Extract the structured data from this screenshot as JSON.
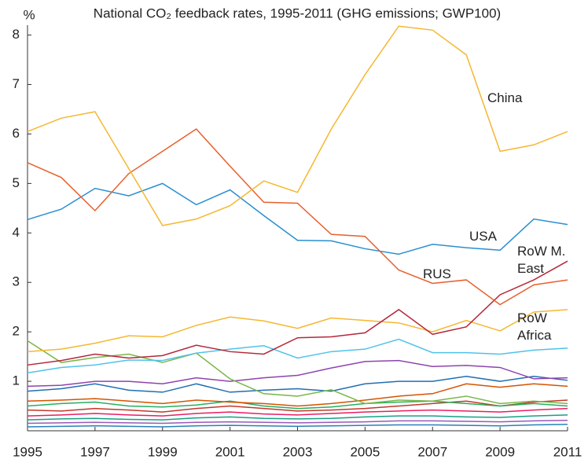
{
  "chart_data": {
    "type": "line",
    "title": "National CO₂ feedback rates, 1995-2011 (GHG emissions; GWP100)",
    "y_label": "%",
    "x": [
      1995,
      1996,
      1997,
      1998,
      1999,
      2000,
      2001,
      2002,
      2003,
      2004,
      2005,
      2006,
      2007,
      2008,
      2009,
      2010,
      2011
    ],
    "xlim": [
      1995,
      2011
    ],
    "xticks": [
      1995,
      1997,
      1999,
      2001,
      2003,
      2005,
      2007,
      2009,
      2011
    ],
    "ylim": [
      0,
      8.2
    ],
    "yticks": [
      1,
      2,
      3,
      4,
      5,
      6,
      7,
      8
    ],
    "series": [
      {
        "name": "China",
        "color": "#f5b731",
        "values": [
          6.05,
          6.32,
          6.45,
          5.3,
          4.15,
          4.28,
          4.55,
          5.05,
          4.82,
          6.1,
          7.2,
          8.18,
          8.1,
          7.6,
          5.65,
          5.78,
          6.05
        ]
      },
      {
        "name": "RUS",
        "color": "#e8602c",
        "values": [
          5.42,
          5.12,
          4.45,
          5.2,
          5.65,
          6.1,
          5.35,
          4.62,
          4.6,
          3.97,
          3.93,
          3.25,
          2.98,
          3.05,
          2.55,
          2.95,
          3.05
        ]
      },
      {
        "name": "USA",
        "color": "#2a8fd0",
        "values": [
          4.27,
          4.48,
          4.9,
          4.75,
          5.0,
          4.57,
          4.87,
          4.35,
          3.85,
          3.84,
          3.68,
          3.57,
          3.77,
          3.7,
          3.65,
          4.28,
          4.17
        ]
      },
      {
        "name": "RoW M. East",
        "color": "#b5273a",
        "values": [
          1.33,
          1.42,
          1.55,
          1.47,
          1.52,
          1.73,
          1.6,
          1.55,
          1.88,
          1.9,
          1.98,
          2.45,
          1.95,
          2.1,
          2.75,
          3.05,
          3.43
        ]
      },
      {
        "name": "RoW Africa",
        "color": "#f5b731",
        "values": [
          1.6,
          1.65,
          1.77,
          1.92,
          1.9,
          2.13,
          2.3,
          2.22,
          2.07,
          2.28,
          2.23,
          2.18,
          2.0,
          2.23,
          2.02,
          2.4,
          2.45
        ]
      },
      {
        "color": "#4fc3e8",
        "values": [
          1.17,
          1.28,
          1.33,
          1.43,
          1.42,
          1.57,
          1.65,
          1.72,
          1.47,
          1.6,
          1.65,
          1.85,
          1.58,
          1.58,
          1.55,
          1.63,
          1.67
        ]
      },
      {
        "color": "#7ab648",
        "values": [
          1.82,
          1.38,
          1.48,
          1.55,
          1.38,
          1.57,
          1.05,
          0.75,
          0.7,
          0.83,
          0.55,
          0.62,
          0.6,
          0.7,
          0.55,
          0.6,
          0.55
        ]
      },
      {
        "color": "#8e44ad",
        "values": [
          0.9,
          0.92,
          1.0,
          1.0,
          0.95,
          1.07,
          1.0,
          1.07,
          1.12,
          1.27,
          1.4,
          1.42,
          1.3,
          1.32,
          1.28,
          1.05,
          1.07
        ]
      },
      {
        "color": "#1f6fb2",
        "values": [
          0.8,
          0.85,
          0.95,
          0.82,
          0.78,
          0.95,
          0.78,
          0.82,
          0.85,
          0.8,
          0.95,
          1.0,
          1.0,
          1.1,
          1.0,
          1.1,
          1.02
        ]
      },
      {
        "color": "#d35400",
        "values": [
          0.6,
          0.62,
          0.65,
          0.6,
          0.55,
          0.62,
          0.58,
          0.55,
          0.5,
          0.55,
          0.62,
          0.7,
          0.75,
          0.95,
          0.88,
          0.95,
          0.9
        ]
      },
      {
        "color": "#27ae60",
        "values": [
          0.5,
          0.55,
          0.58,
          0.5,
          0.48,
          0.52,
          0.6,
          0.5,
          0.45,
          0.48,
          0.55,
          0.58,
          0.6,
          0.55,
          0.5,
          0.55,
          0.5
        ]
      },
      {
        "color": "#c0392b",
        "values": [
          0.42,
          0.4,
          0.45,
          0.42,
          0.38,
          0.45,
          0.5,
          0.45,
          0.4,
          0.42,
          0.45,
          0.5,
          0.55,
          0.6,
          0.5,
          0.58,
          0.62
        ]
      },
      {
        "color": "#e91e63",
        "values": [
          0.3,
          0.32,
          0.35,
          0.32,
          0.3,
          0.35,
          0.38,
          0.34,
          0.32,
          0.35,
          0.38,
          0.4,
          0.42,
          0.4,
          0.38,
          0.42,
          0.45
        ]
      },
      {
        "color": "#16a085",
        "values": [
          0.22,
          0.24,
          0.25,
          0.23,
          0.22,
          0.26,
          0.28,
          0.25,
          0.24,
          0.25,
          0.28,
          0.3,
          0.3,
          0.28,
          0.27,
          0.3,
          0.32
        ]
      },
      {
        "color": "#9b59b6",
        "values": [
          0.15,
          0.16,
          0.17,
          0.16,
          0.15,
          0.17,
          0.18,
          0.17,
          0.16,
          0.17,
          0.18,
          0.2,
          0.2,
          0.19,
          0.18,
          0.2,
          0.21
        ]
      },
      {
        "color": "#2980b9",
        "values": [
          0.08,
          0.09,
          0.1,
          0.09,
          0.08,
          0.1,
          0.11,
          0.1,
          0.09,
          0.1,
          0.11,
          0.12,
          0.12,
          0.11,
          0.1,
          0.12,
          0.13
        ]
      }
    ]
  }
}
